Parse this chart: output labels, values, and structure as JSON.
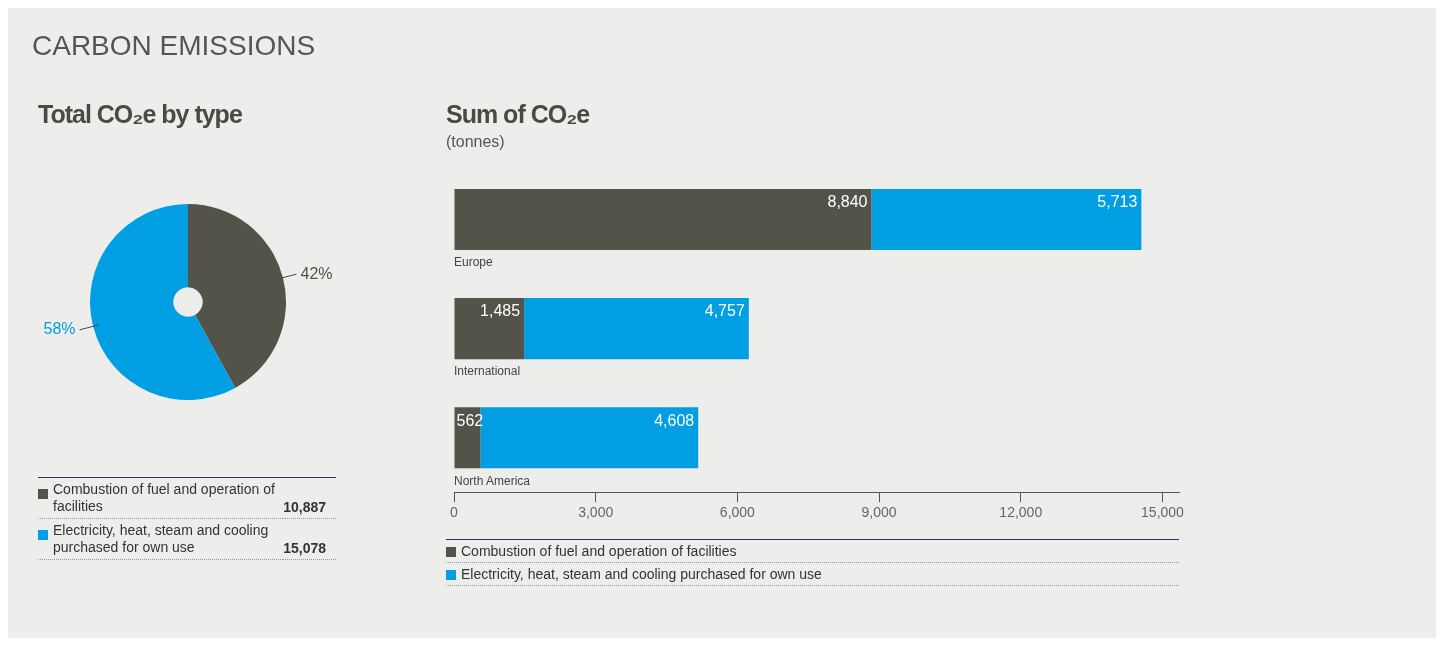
{
  "chart_data": [
    {
      "type": "donut",
      "title": "Total CO₂e by type",
      "annotations": [
        "CARBON EMISSIONS",
        "10,887",
        "15,078"
      ],
      "categories": [
        "Combustion of fuel and operation of facilities",
        "Electricity, heat, steam and cooling purchased for own use"
      ],
      "values": [
        42,
        58
      ],
      "value_labels": [
        "42%",
        "58%"
      ],
      "colors": [
        "#53534a",
        "#009fe3"
      ],
      "legend": "bottom"
    },
    {
      "type": "bar",
      "title": "Sum of CO₂e",
      "subtitle": "(tonnes)",
      "orientation": "horizontal",
      "stacked": true,
      "categories": [
        "Europe",
        "International",
        "North America"
      ],
      "series": [
        {
          "name": "Combustion of fuel and operation of facilities",
          "color": "#53534a",
          "values": [
            8840,
            1485,
            562
          ],
          "value_labels": [
            "8,840",
            "1,485",
            "562"
          ]
        },
        {
          "name": "Electricity, heat, steam and cooling purchased for own use",
          "color": "#009fe3",
          "values": [
            5713,
            4757,
            4608
          ],
          "value_labels": [
            "5,713",
            "4,757",
            "4,608"
          ]
        }
      ],
      "xlim": [
        0,
        15350
      ],
      "xticks": [
        0,
        {
          "value": 3000,
          "label": "3,000"
        },
        {
          "value": 6000,
          "label": "6,000"
        },
        {
          "value": 9000,
          "label": "9,000"
        },
        {
          "value": 12000,
          "label": "12,000"
        },
        {
          "value": 15000,
          "label": "15,000"
        }
      ],
      "grid": false,
      "legend": "bottom"
    }
  ]
}
